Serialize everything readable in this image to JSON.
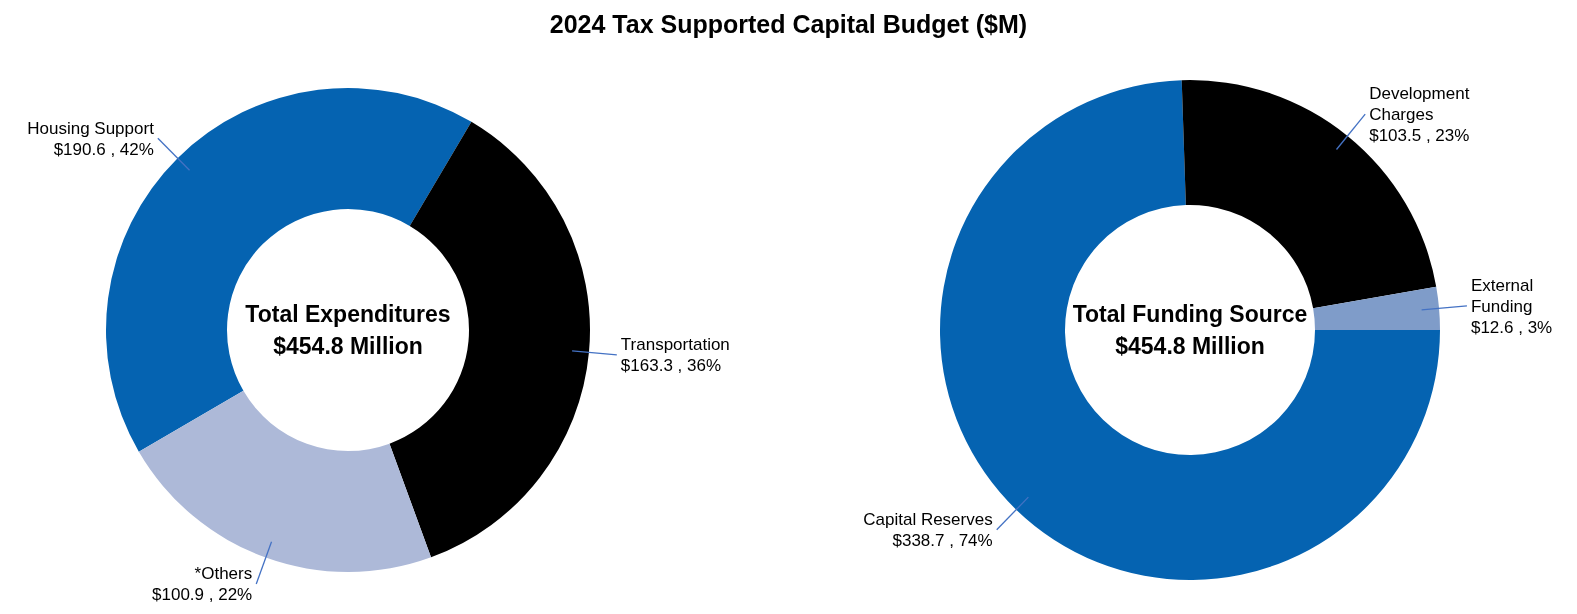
{
  "chart_data": [
    {
      "type": "donut",
      "title": "2024 Tax Supported Capital Budget ($M)",
      "categories": [
        "Housing Support",
        "Transportation",
        "*Others"
      ],
      "values": [
        190.6,
        163.3,
        100.9
      ],
      "colors": [
        "#0563b1",
        "#000000",
        "#adb9d8"
      ],
      "value_labels": [
        "$190.6 , 42%",
        "$163.3 , 36%",
        "$100.9 , 22%"
      ],
      "annotations": [
        "Total Expenditures",
        "$454.8 Million"
      ]
    },
    {
      "type": "donut",
      "categories": [
        "Capital Reserves",
        "Development Charges",
        "External Funding"
      ],
      "values": [
        338.7,
        103.5,
        12.6
      ],
      "colors": [
        "#0563b1",
        "#000000",
        "#7f9cc9"
      ],
      "value_labels": [
        "$338.7 , 74%",
        "$103.5 , 23%",
        "$12.6 , 3%"
      ],
      "annotations": [
        "Total Funding Source",
        "$454.8 Million"
      ]
    }
  ]
}
